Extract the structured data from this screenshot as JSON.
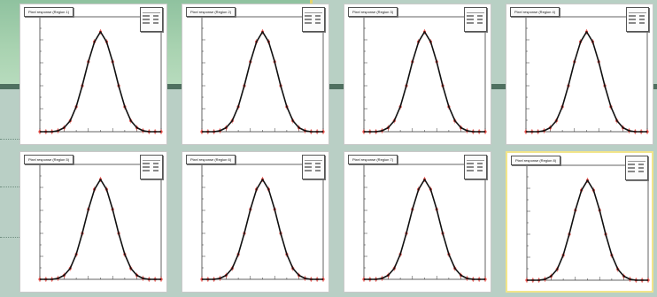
{
  "chart_data": [
    {
      "type": "line",
      "title": "Pixel response (Region 1)",
      "x": [
        -1.0,
        -0.9,
        -0.8,
        -0.7,
        -0.6,
        -0.5,
        -0.4,
        -0.3,
        -0.2,
        -0.1,
        0.0,
        0.1,
        0.2,
        0.3,
        0.4,
        0.5,
        0.6,
        0.7,
        0.8,
        0.9,
        1.0
      ],
      "series": [
        {
          "values": [
            0,
            0,
            0,
            0.01,
            0.04,
            0.11,
            0.25,
            0.46,
            0.7,
            0.9,
            1.0,
            0.9,
            0.7,
            0.46,
            0.25,
            0.11,
            0.04,
            0.01,
            0,
            0,
            0
          ]
        }
      ],
      "xlim": [
        -1,
        1
      ],
      "ylim": [
        0,
        1.15
      ]
    },
    {
      "type": "line",
      "title": "Pixel response (Region 2)",
      "x": [
        -1.0,
        -0.9,
        -0.8,
        -0.7,
        -0.6,
        -0.5,
        -0.4,
        -0.3,
        -0.2,
        -0.1,
        0.0,
        0.1,
        0.2,
        0.3,
        0.4,
        0.5,
        0.6,
        0.7,
        0.8,
        0.9,
        1.0
      ],
      "series": [
        {
          "values": [
            0,
            0,
            0,
            0.01,
            0.04,
            0.11,
            0.25,
            0.46,
            0.7,
            0.9,
            1.0,
            0.9,
            0.7,
            0.46,
            0.25,
            0.11,
            0.04,
            0.01,
            0,
            0,
            0
          ]
        }
      ],
      "xlim": [
        -1,
        1
      ],
      "ylim": [
        0,
        1.15
      ]
    },
    {
      "type": "line",
      "title": "Pixel response (Region 3)",
      "x": [
        -1.0,
        -0.9,
        -0.8,
        -0.7,
        -0.6,
        -0.5,
        -0.4,
        -0.3,
        -0.2,
        -0.1,
        0.0,
        0.1,
        0.2,
        0.3,
        0.4,
        0.5,
        0.6,
        0.7,
        0.8,
        0.9,
        1.0
      ],
      "series": [
        {
          "values": [
            0,
            0,
            0,
            0.01,
            0.04,
            0.11,
            0.25,
            0.46,
            0.7,
            0.9,
            1.0,
            0.9,
            0.7,
            0.46,
            0.25,
            0.11,
            0.04,
            0.01,
            0,
            0,
            0
          ]
        }
      ],
      "xlim": [
        -1,
        1
      ],
      "ylim": [
        0,
        1.15
      ]
    },
    {
      "type": "line",
      "title": "Pixel response (Region 4)",
      "x": [
        -1.0,
        -0.9,
        -0.8,
        -0.7,
        -0.6,
        -0.5,
        -0.4,
        -0.3,
        -0.2,
        -0.1,
        0.0,
        0.1,
        0.2,
        0.3,
        0.4,
        0.5,
        0.6,
        0.7,
        0.8,
        0.9,
        1.0
      ],
      "series": [
        {
          "values": [
            0,
            0,
            0,
            0.01,
            0.04,
            0.11,
            0.25,
            0.46,
            0.7,
            0.9,
            1.0,
            0.9,
            0.7,
            0.46,
            0.25,
            0.11,
            0.04,
            0.01,
            0,
            0,
            0
          ]
        }
      ],
      "xlim": [
        -1,
        1
      ],
      "ylim": [
        0,
        1.15
      ]
    },
    {
      "type": "line",
      "title": "Pixel response (Region 5)",
      "x": [
        -1.0,
        -0.9,
        -0.8,
        -0.7,
        -0.6,
        -0.5,
        -0.4,
        -0.3,
        -0.2,
        -0.1,
        0.0,
        0.1,
        0.2,
        0.3,
        0.4,
        0.5,
        0.6,
        0.7,
        0.8,
        0.9,
        1.0
      ],
      "series": [
        {
          "values": [
            0,
            0,
            0,
            0.01,
            0.04,
            0.11,
            0.25,
            0.46,
            0.7,
            0.9,
            1.0,
            0.9,
            0.7,
            0.46,
            0.25,
            0.11,
            0.04,
            0.01,
            0,
            0,
            0
          ]
        }
      ],
      "xlim": [
        -1,
        1
      ],
      "ylim": [
        0,
        1.15
      ]
    },
    {
      "type": "line",
      "title": "Pixel response (Region 6)",
      "x": [
        -1.0,
        -0.9,
        -0.8,
        -0.7,
        -0.6,
        -0.5,
        -0.4,
        -0.3,
        -0.2,
        -0.1,
        0.0,
        0.1,
        0.2,
        0.3,
        0.4,
        0.5,
        0.6,
        0.7,
        0.8,
        0.9,
        1.0
      ],
      "series": [
        {
          "values": [
            0,
            0,
            0,
            0.01,
            0.04,
            0.11,
            0.25,
            0.46,
            0.7,
            0.9,
            1.0,
            0.9,
            0.7,
            0.46,
            0.25,
            0.11,
            0.04,
            0.01,
            0,
            0,
            0
          ]
        }
      ],
      "xlim": [
        -1,
        1
      ],
      "ylim": [
        0,
        1.15
      ]
    },
    {
      "type": "line",
      "title": "Pixel response (Region 7)",
      "x": [
        -1.0,
        -0.9,
        -0.8,
        -0.7,
        -0.6,
        -0.5,
        -0.4,
        -0.3,
        -0.2,
        -0.1,
        0.0,
        0.1,
        0.2,
        0.3,
        0.4,
        0.5,
        0.6,
        0.7,
        0.8,
        0.9,
        1.0
      ],
      "series": [
        {
          "values": [
            0,
            0,
            0,
            0.01,
            0.04,
            0.11,
            0.25,
            0.46,
            0.7,
            0.9,
            1.0,
            0.9,
            0.7,
            0.46,
            0.25,
            0.11,
            0.04,
            0.01,
            0,
            0,
            0
          ]
        }
      ],
      "xlim": [
        -1,
        1
      ],
      "ylim": [
        0,
        1.15
      ]
    },
    {
      "type": "line",
      "title": "Pixel response (Region 8)",
      "x": [
        -1.0,
        -0.9,
        -0.8,
        -0.7,
        -0.6,
        -0.5,
        -0.4,
        -0.3,
        -0.2,
        -0.1,
        0.0,
        0.1,
        0.2,
        0.3,
        0.4,
        0.5,
        0.6,
        0.7,
        0.8,
        0.9,
        1.0
      ],
      "series": [
        {
          "values": [
            0,
            0,
            0,
            0.01,
            0.04,
            0.11,
            0.25,
            0.46,
            0.7,
            0.9,
            1.0,
            0.9,
            0.7,
            0.46,
            0.25,
            0.11,
            0.04,
            0.01,
            0,
            0,
            0
          ]
        }
      ],
      "xlim": [
        -1,
        1
      ],
      "ylim": [
        0,
        1.15
      ]
    }
  ],
  "colors": {
    "data_points": "#e0302a",
    "fit_line": "#111111",
    "selected_border": "#f2e58a",
    "slide_green": "#a8d2b0"
  }
}
